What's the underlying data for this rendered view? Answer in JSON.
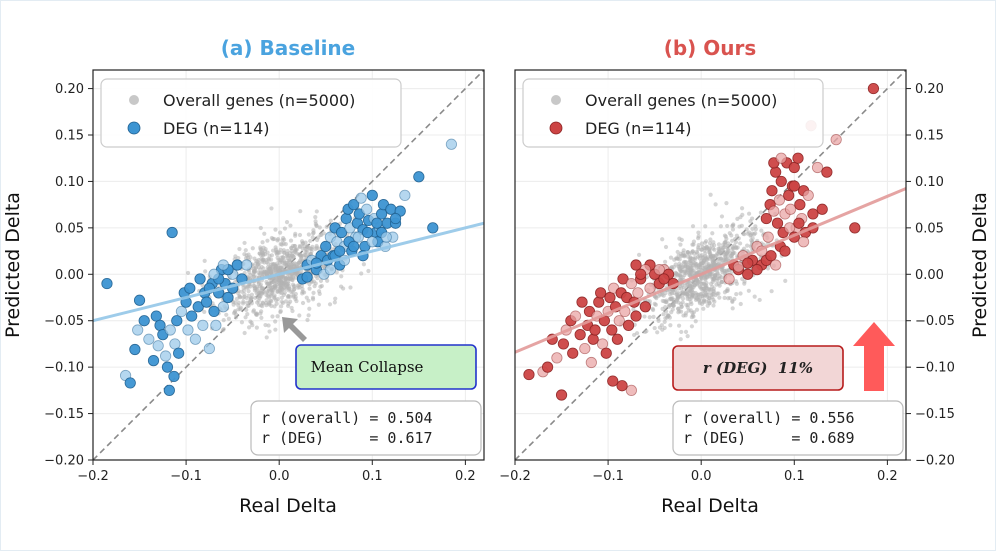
{
  "chart_data": [
    {
      "type": "scatter",
      "title": "(a) Baseline",
      "title_color": "#4aa3df",
      "xlabel": "Real Delta",
      "ylabel": "Predicted Delta",
      "xlim": [
        -0.2,
        0.22
      ],
      "ylim": [
        -0.2,
        0.22
      ],
      "xticks": [
        -0.2,
        -0.1,
        0.0,
        0.1,
        0.2
      ],
      "xtick_labels": [
        "−0.2",
        "−0.1",
        "0.0",
        "0.1",
        "0.2"
      ],
      "yticks": [
        -0.2,
        -0.15,
        -0.1,
        -0.05,
        0.0,
        0.05,
        0.1,
        0.15,
        0.2
      ],
      "ytick_labels": [
        "−0.20",
        "−0.15",
        "−0.10",
        "−0.05",
        "0.00",
        "0.05",
        "0.10",
        "0.15",
        "0.20"
      ],
      "ytick_side": "left",
      "grid": true,
      "legend_position": "top-left",
      "series": [
        {
          "name": "Overall genes (n=5000)",
          "color": "#b3b3b3"
        },
        {
          "name": "DEG (n=114)",
          "color": "#3c94d2",
          "points": [
            [
              -0.185,
              -0.01
            ],
            [
              -0.165,
              -0.109
            ],
            [
              -0.16,
              -0.117
            ],
            [
              -0.155,
              -0.081
            ],
            [
              -0.152,
              -0.06
            ],
            [
              -0.15,
              -0.028
            ],
            [
              -0.145,
              -0.05
            ],
            [
              -0.14,
              -0.07
            ],
            [
              -0.135,
              -0.093
            ],
            [
              -0.132,
              -0.045
            ],
            [
              -0.13,
              -0.077
            ],
            [
              -0.128,
              -0.055
            ],
            [
              -0.125,
              -0.065
            ],
            [
              -0.122,
              -0.088
            ],
            [
              -0.12,
              -0.1
            ],
            [
              -0.118,
              -0.125
            ],
            [
              -0.117,
              -0.06
            ],
            [
              -0.115,
              0.045
            ],
            [
              -0.113,
              -0.11
            ],
            [
              -0.112,
              -0.075
            ],
            [
              -0.11,
              -0.05
            ],
            [
              -0.108,
              -0.085
            ],
            [
              -0.105,
              -0.04
            ],
            [
              -0.102,
              -0.02
            ],
            [
              -0.1,
              -0.03
            ],
            [
              -0.098,
              -0.06
            ],
            [
              -0.096,
              -0.015
            ],
            [
              -0.094,
              -0.045
            ],
            [
              -0.09,
              -0.07
            ],
            [
              -0.087,
              -0.035
            ],
            [
              -0.085,
              -0.005
            ],
            [
              -0.082,
              -0.055
            ],
            [
              -0.08,
              -0.02
            ],
            [
              -0.078,
              -0.03
            ],
            [
              -0.075,
              -0.08
            ],
            [
              -0.072,
              -0.01
            ],
            [
              -0.07,
              -0.04
            ],
            [
              -0.068,
              -0.055
            ],
            [
              -0.065,
              -0.02
            ],
            [
              -0.062,
              0.005
            ],
            [
              -0.06,
              -0.035
            ],
            [
              -0.058,
              -0.01
            ],
            [
              -0.055,
              -0.025
            ],
            [
              -0.05,
              0.0
            ],
            [
              -0.045,
              0.01
            ],
            [
              -0.04,
              -0.005
            ],
            [
              -0.035,
              0.01
            ],
            [
              0.025,
              -0.005
            ],
            [
              0.03,
              0.01
            ],
            [
              0.035,
              0.015
            ],
            [
              0.04,
              0.005
            ],
            [
              0.045,
              0.02
            ],
            [
              0.048,
              0.0
            ],
            [
              0.05,
              0.03
            ],
            [
              0.052,
              0.015
            ],
            [
              0.055,
              0.04
            ],
            [
              0.058,
              0.02
            ],
            [
              0.06,
              0.05
            ],
            [
              0.062,
              0.035
            ],
            [
              0.065,
              0.01
            ],
            [
              0.067,
              0.045
            ],
            [
              0.07,
              0.03
            ],
            [
              0.072,
              0.06
            ],
            [
              0.074,
              0.07
            ],
            [
              0.076,
              0.05
            ],
            [
              0.078,
              0.025
            ],
            [
              0.08,
              0.075
            ],
            [
              0.082,
              0.04
            ],
            [
              0.084,
              0.055
            ],
            [
              0.086,
              0.065
            ],
            [
              0.088,
              0.082
            ],
            [
              0.09,
              0.048
            ],
            [
              0.092,
              0.03
            ],
            [
              0.094,
              0.07
            ],
            [
              0.096,
              0.058
            ],
            [
              0.1,
              0.085
            ],
            [
              0.102,
              0.06
            ],
            [
              0.104,
              0.045
            ],
            [
              0.106,
              0.035
            ],
            [
              0.108,
              0.05
            ],
            [
              0.11,
              0.065
            ],
            [
              0.112,
              0.075
            ],
            [
              0.114,
              0.03
            ],
            [
              0.116,
              0.055
            ],
            [
              0.12,
              0.07
            ],
            [
              0.122,
              0.04
            ],
            [
              0.125,
              0.055
            ],
            [
              0.13,
              0.068
            ],
            [
              0.135,
              0.085
            ],
            [
              0.15,
              0.105
            ],
            [
              0.165,
              0.05
            ],
            [
              0.185,
              0.14
            ],
            [
              0.03,
              -0.003
            ],
            [
              0.04,
              0.012
            ],
            [
              0.055,
              0.005
            ],
            [
              0.06,
              0.02
            ],
            [
              0.065,
              0.025
            ],
            [
              0.07,
              0.015
            ],
            [
              0.075,
              0.035
            ],
            [
              0.08,
              0.03
            ],
            [
              0.085,
              0.04
            ],
            [
              0.09,
              0.02
            ],
            [
              0.095,
              0.045
            ],
            [
              0.1,
              0.035
            ],
            [
              0.105,
              0.055
            ],
            [
              0.11,
              0.045
            ],
            [
              0.115,
              0.04
            ],
            [
              0.125,
              0.06
            ],
            [
              -0.055,
              0.005
            ],
            [
              -0.06,
              0.01
            ],
            [
              -0.05,
              -0.015
            ],
            [
              -0.065,
              -0.005
            ],
            [
              -0.07,
              0.0
            ],
            [
              -0.075,
              -0.015
            ]
          ]
        }
      ],
      "trend_line": {
        "slope": 0.25,
        "intercept": 0.0,
        "color": "#94c7e8"
      },
      "identity_line": true,
      "annotations": {
        "callout": "Mean Collapse",
        "stats": [
          "r (overall) = 0.504",
          "r (DEG)     = 0.617"
        ]
      }
    },
    {
      "type": "scatter",
      "title": "(b) Ours",
      "title_color": "#d9534f",
      "xlabel": "Real Delta",
      "ylabel": "Predicted Delta",
      "xlim": [
        -0.2,
        0.22
      ],
      "ylim": [
        -0.2,
        0.22
      ],
      "xticks": [
        -0.2,
        -0.1,
        0.0,
        0.1,
        0.2
      ],
      "xtick_labels": [
        "−0.2",
        "−0.1",
        "0.0",
        "0.1",
        "0.2"
      ],
      "yticks": [
        -0.2,
        -0.15,
        -0.1,
        -0.05,
        0.0,
        0.05,
        0.1,
        0.15,
        0.2
      ],
      "ytick_labels": [
        "−0.20",
        "−0.15",
        "−0.10",
        "−0.05",
        "0.00",
        "0.05",
        "0.10",
        "0.15",
        "0.20"
      ],
      "ytick_side": "right",
      "grid": true,
      "legend_position": "top-left",
      "series": [
        {
          "name": "Overall genes (n=5000)",
          "color": "#b3b3b3"
        },
        {
          "name": "DEG (n=114)",
          "color": "#cc4444",
          "points": [
            [
              -0.185,
              -0.108
            ],
            [
              -0.17,
              -0.105
            ],
            [
              -0.165,
              -0.1
            ],
            [
              -0.16,
              -0.07
            ],
            [
              -0.155,
              -0.09
            ],
            [
              -0.15,
              -0.13
            ],
            [
              -0.148,
              -0.075
            ],
            [
              -0.145,
              -0.06
            ],
            [
              -0.14,
              -0.05
            ],
            [
              -0.138,
              -0.085
            ],
            [
              -0.135,
              -0.045
            ],
            [
              -0.13,
              -0.065
            ],
            [
              -0.128,
              -0.03
            ],
            [
              -0.125,
              -0.08
            ],
            [
              -0.122,
              -0.055
            ],
            [
              -0.12,
              -0.04
            ],
            [
              -0.118,
              -0.095
            ],
            [
              -0.116,
              -0.07
            ],
            [
              -0.114,
              -0.06
            ],
            [
              -0.112,
              -0.045
            ],
            [
              -0.11,
              -0.03
            ],
            [
              -0.108,
              -0.02
            ],
            [
              -0.106,
              -0.075
            ],
            [
              -0.104,
              -0.05
            ],
            [
              -0.102,
              -0.085
            ],
            [
              -0.1,
              -0.04
            ],
            [
              -0.098,
              -0.025
            ],
            [
              -0.096,
              -0.06
            ],
            [
              -0.094,
              -0.015
            ],
            [
              -0.092,
              -0.035
            ],
            [
              -0.09,
              -0.07
            ],
            [
              -0.088,
              -0.05
            ],
            [
              -0.086,
              -0.02
            ],
            [
              -0.084,
              -0.005
            ],
            [
              -0.082,
              -0.04
            ],
            [
              -0.08,
              -0.025
            ],
            [
              -0.078,
              -0.055
            ],
            [
              -0.075,
              -0.01
            ],
            [
              -0.072,
              -0.03
            ],
            [
              -0.07,
              -0.045
            ],
            [
              -0.068,
              -0.02
            ],
            [
              -0.065,
              -0.005
            ],
            [
              -0.06,
              -0.035
            ],
            [
              -0.055,
              -0.015
            ],
            [
              -0.05,
              0.0
            ],
            [
              -0.045,
              -0.01
            ],
            [
              -0.04,
              0.005
            ],
            [
              -0.035,
              0.0
            ],
            [
              -0.03,
              -0.01
            ],
            [
              -0.075,
              -0.125
            ],
            [
              -0.085,
              -0.12
            ],
            [
              -0.095,
              -0.115
            ],
            [
              0.03,
              -0.005
            ],
            [
              0.035,
              0.01
            ],
            [
              0.04,
              0.005
            ],
            [
              0.045,
              0.02
            ],
            [
              0.05,
              0.0
            ],
            [
              0.055,
              0.015
            ],
            [
              0.06,
              0.03
            ],
            [
              0.065,
              0.01
            ],
            [
              0.07,
              0.06
            ],
            [
              0.072,
              0.04
            ],
            [
              0.074,
              0.075
            ],
            [
              0.076,
              0.09
            ],
            [
              0.078,
              0.068
            ],
            [
              0.08,
              0.11
            ],
            [
              0.082,
              0.055
            ],
            [
              0.084,
              0.08
            ],
            [
              0.086,
              0.1
            ],
            [
              0.088,
              0.045
            ],
            [
              0.09,
              0.065
            ],
            [
              0.092,
              0.12
            ],
            [
              0.094,
              0.085
            ],
            [
              0.096,
              0.07
            ],
            [
              0.098,
              0.095
            ],
            [
              0.1,
              0.115
            ],
            [
              0.102,
              0.05
            ],
            [
              0.104,
              0.125
            ],
            [
              0.106,
              0.075
            ],
            [
              0.108,
              0.06
            ],
            [
              0.11,
              0.09
            ],
            [
              0.112,
              0.045
            ],
            [
              0.115,
              0.085
            ],
            [
              0.118,
              0.16
            ],
            [
              0.12,
              0.065
            ],
            [
              0.125,
              0.115
            ],
            [
              0.13,
              0.07
            ],
            [
              0.135,
              0.11
            ],
            [
              0.145,
              0.145
            ],
            [
              0.165,
              0.05
            ],
            [
              0.185,
              0.2
            ],
            [
              0.04,
              0.008
            ],
            [
              0.05,
              0.012
            ],
            [
              0.06,
              0.005
            ],
            [
              0.065,
              0.025
            ],
            [
              0.07,
              0.015
            ],
            [
              0.075,
              0.02
            ],
            [
              0.08,
              0.01
            ],
            [
              0.085,
              0.03
            ],
            [
              0.09,
              0.025
            ],
            [
              0.095,
              0.05
            ],
            [
              0.1,
              0.04
            ],
            [
              0.105,
              0.055
            ],
            [
              0.11,
              0.035
            ],
            [
              0.12,
              0.05
            ],
            [
              0.078,
              0.12
            ],
            [
              0.086,
              0.125
            ],
            [
              0.1,
              0.095
            ],
            [
              -0.055,
              0.01
            ],
            [
              -0.06,
              0.005
            ],
            [
              -0.065,
              0.0
            ],
            [
              -0.07,
              0.01
            ],
            [
              -0.045,
              0.005
            ],
            [
              -0.04,
              -0.005
            ]
          ]
        }
      ],
      "trend_line": {
        "slope": 0.42,
        "intercept": 0.0,
        "color": "#e29a99"
      },
      "identity_line": true,
      "annotations": {
        "callout": "r (DEG)  11%",
        "stats": [
          "r (overall) = 0.556",
          "r (DEG)     = 0.689"
        ]
      }
    }
  ]
}
